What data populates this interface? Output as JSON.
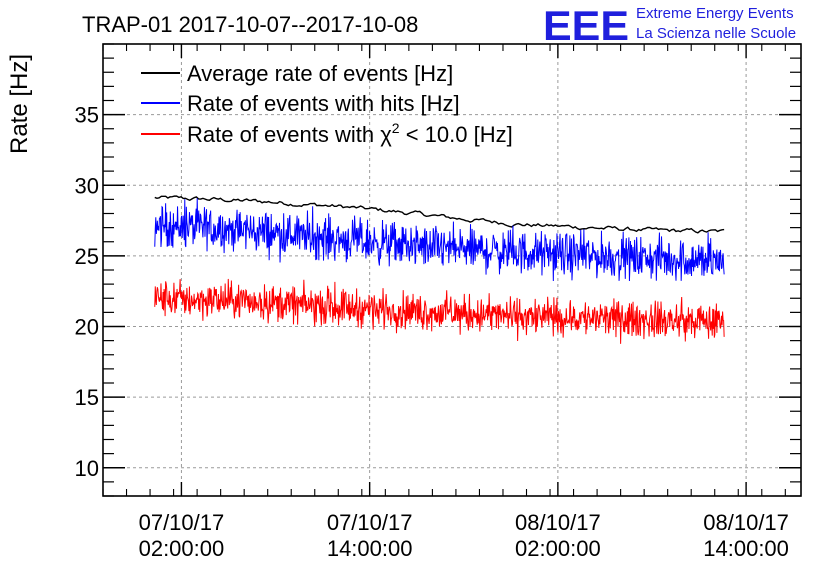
{
  "header": {
    "title": "TRAP-01 2017-10-07--2017-10-08",
    "logo_text": "EEE",
    "org_line1": "Extreme Energy Events",
    "org_line2": "La Scienza nelle Scuole"
  },
  "colors": {
    "average": "#000000",
    "hits": "#0000ff",
    "chi2": "#ff0000",
    "logo": "#1f1fdd",
    "grid": "#9a9a9a"
  },
  "chart_data": {
    "type": "line",
    "title": "TRAP-01 2017-10-07--2017-10-08",
    "xlabel": "",
    "ylabel": "Rate [Hz]",
    "ylim": [
      8,
      40
    ],
    "xlim_hours": [
      -3,
      41.5
    ],
    "y_ticks": [
      10,
      15,
      20,
      25,
      30,
      35
    ],
    "grid": true,
    "legend_position": "top-left",
    "x_ticks": [
      {
        "hour": 2,
        "date": "07/10/17",
        "time": "02:00:00"
      },
      {
        "hour": 14,
        "date": "07/10/17",
        "time": "14:00:00"
      },
      {
        "hour": 26,
        "date": "08/10/17",
        "time": "02:00:00"
      },
      {
        "hour": 38,
        "date": "08/10/17",
        "time": "14:00:00"
      }
    ],
    "series": [
      {
        "key": "average",
        "name": "Average rate of events [Hz]",
        "x_range_hours": [
          0.3,
          36.6
        ],
        "baseline": [
          [
            0.3,
            29.1
          ],
          [
            4,
            29.0
          ],
          [
            8,
            28.8
          ],
          [
            12,
            28.5
          ],
          [
            16,
            28.1
          ],
          [
            20,
            27.6
          ],
          [
            24,
            27.2
          ],
          [
            28,
            27.0
          ],
          [
            32,
            26.8
          ],
          [
            36.6,
            26.7
          ]
        ],
        "noise": 0.15
      },
      {
        "key": "hits",
        "name": "Rate of events with hits [Hz]",
        "x_range_hours": [
          0.3,
          36.6
        ],
        "baseline": [
          [
            0.3,
            27.2
          ],
          [
            6,
            26.8
          ],
          [
            12,
            26.2
          ],
          [
            18,
            25.6
          ],
          [
            24,
            25.2
          ],
          [
            30,
            24.9
          ],
          [
            36.6,
            24.6
          ]
        ],
        "noise": 1.0
      },
      {
        "key": "chi2",
        "name_prefix": "Rate of events with ",
        "name_symbol": "χ",
        "name_superscript": "2",
        "name_suffix": " < 10.0 [Hz]",
        "x_range_hours": [
          0.3,
          36.6
        ],
        "baseline": [
          [
            0.3,
            22.0
          ],
          [
            6,
            21.8
          ],
          [
            12,
            21.4
          ],
          [
            18,
            21.0
          ],
          [
            24,
            20.7
          ],
          [
            30,
            20.5
          ],
          [
            36.6,
            20.3
          ]
        ],
        "noise": 0.85
      }
    ]
  }
}
